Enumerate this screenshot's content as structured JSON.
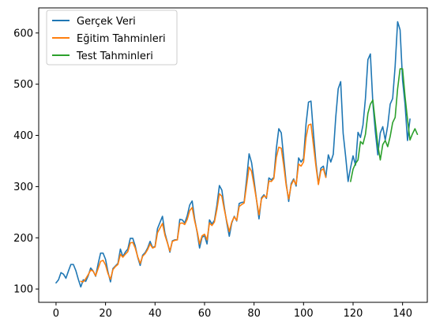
{
  "chart_data": {
    "type": "line",
    "title": "",
    "xlabel": "",
    "ylabel": "",
    "xlim": [
      -7,
      150
    ],
    "ylim": [
      74,
      649
    ],
    "grid": false,
    "legend_position": "top-left",
    "x_ticks": [
      0,
      20,
      40,
      60,
      80,
      100,
      120,
      140
    ],
    "y_ticks": [
      100,
      200,
      300,
      400,
      500,
      600
    ],
    "series": [
      {
        "name": "Gerçek Veri",
        "color": "#1f77b4",
        "x_start": 0,
        "values": [
          112,
          118,
          132,
          129,
          121,
          135,
          148,
          148,
          136,
          119,
          104,
          118,
          115,
          126,
          141,
          135,
          125,
          149,
          170,
          170,
          158,
          133,
          114,
          140,
          145,
          150,
          178,
          163,
          172,
          178,
          199,
          199,
          184,
          162,
          146,
          166,
          171,
          180,
          193,
          181,
          183,
          218,
          230,
          242,
          209,
          191,
          172,
          194,
          196,
          196,
          236,
          235,
          229,
          243,
          264,
          272,
          237,
          211,
          180,
          201,
          204,
          188,
          235,
          227,
          234,
          264,
          302,
          293,
          259,
          229,
          203,
          229,
          242,
          233,
          267,
          269,
          270,
          315,
          364,
          347,
          312,
          274,
          237,
          278,
          284,
          277,
          317,
          313,
          318,
          374,
          413,
          405,
          355,
          306,
          271,
          306,
          315,
          301,
          356,
          348,
          355,
          422,
          465,
          467,
          404,
          347,
          305,
          336,
          340,
          318,
          362,
          348,
          363,
          435,
          491,
          505,
          404,
          359,
          310,
          337,
          360,
          342,
          406,
          396,
          420,
          472,
          548,
          559,
          463,
          407,
          362,
          405,
          417,
          391,
          419,
          461,
          472,
          535,
          622,
          606,
          508,
          461,
          390,
          432
        ]
      },
      {
        "name": "Eğitim Tahminleri",
        "color": "#ff7f0e",
        "x_start": 10,
        "values": [
          115,
          114,
          120,
          128,
          137,
          135,
          126,
          140,
          154,
          156,
          147,
          130,
          119,
          138,
          144,
          148,
          168,
          162,
          168,
          173,
          190,
          191,
          180,
          163,
          150,
          164,
          169,
          177,
          188,
          180,
          182,
          210,
          219,
          228,
          205,
          190,
          174,
          193,
          195,
          196,
          228,
          229,
          226,
          236,
          253,
          259,
          233,
          213,
          188,
          204,
          207,
          196,
          229,
          224,
          231,
          256,
          286,
          281,
          255,
          232,
          212,
          231,
          241,
          234,
          261,
          265,
          268,
          303,
          338,
          330,
          303,
          274,
          245,
          276,
          282,
          279,
          311,
          310,
          316,
          357,
          377,
          375,
          341,
          302,
          276,
          303,
          313,
          304,
          344,
          340,
          348,
          396,
          420,
          422,
          381,
          340,
          304,
          331,
          335,
          318
        ]
      },
      {
        "name": "Test Tahminleri",
        "color": "#2ca02c",
        "x_start": 119,
        "values": [
          310,
          334,
          345,
          352,
          388,
          383,
          402,
          443,
          461,
          469,
          425,
          381,
          352,
          382,
          390,
          378,
          398,
          425,
          435,
          491,
          530,
          530,
          476,
          431,
          391,
          403,
          413,
          402
        ]
      }
    ]
  }
}
